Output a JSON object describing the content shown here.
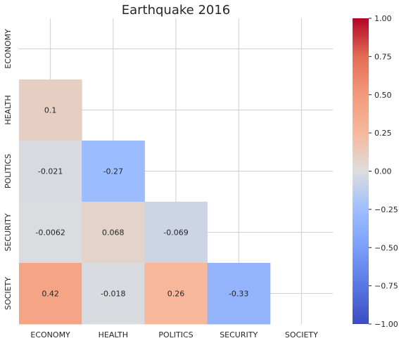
{
  "chart_data": {
    "type": "heatmap",
    "title": "Earthquake 2016",
    "xlabel": "",
    "ylabel": "",
    "x_categories": [
      "ECONOMY",
      "HEALTH",
      "POLITICS",
      "SECURITY",
      "SOCIETY"
    ],
    "y_categories": [
      "ECONOMY",
      "HEALTH",
      "POLITICS",
      "SECURITY",
      "SOCIETY"
    ],
    "mask": "upper triangle including diagonal",
    "cells": [
      {
        "row": "HEALTH",
        "col": "ECONOMY",
        "value": 0.1,
        "label": "0.1"
      },
      {
        "row": "POLITICS",
        "col": "ECONOMY",
        "value": -0.021,
        "label": "-0.021"
      },
      {
        "row": "POLITICS",
        "col": "HEALTH",
        "value": -0.27,
        "label": "-0.27"
      },
      {
        "row": "SECURITY",
        "col": "ECONOMY",
        "value": -0.0062,
        "label": "-0.0062"
      },
      {
        "row": "SECURITY",
        "col": "HEALTH",
        "value": 0.068,
        "label": "0.068"
      },
      {
        "row": "SECURITY",
        "col": "POLITICS",
        "value": -0.069,
        "label": "-0.069"
      },
      {
        "row": "SOCIETY",
        "col": "ECONOMY",
        "value": 0.42,
        "label": "0.42"
      },
      {
        "row": "SOCIETY",
        "col": "HEALTH",
        "value": -0.018,
        "label": "-0.018"
      },
      {
        "row": "SOCIETY",
        "col": "POLITICS",
        "value": 0.26,
        "label": "0.26"
      },
      {
        "row": "SOCIETY",
        "col": "SECURITY",
        "value": -0.33,
        "label": "-0.33"
      }
    ],
    "colorbar": {
      "colormap": "coolwarm",
      "range": [
        -1.0,
        1.0
      ],
      "ticks": [
        -1.0,
        -0.75,
        -0.5,
        -0.25,
        0.0,
        0.25,
        0.5,
        0.75,
        1.0
      ],
      "tick_labels": [
        "−1.00",
        "−0.75",
        "−0.50",
        "−0.25",
        "0.00",
        "0.25",
        "0.50",
        "0.75",
        "1.00"
      ]
    },
    "grid": true
  }
}
